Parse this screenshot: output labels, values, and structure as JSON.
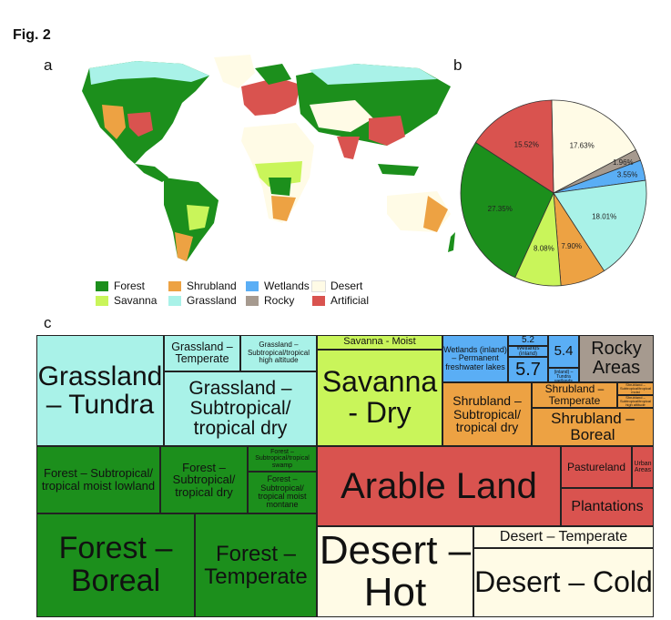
{
  "figure": {
    "label": "Fig. 2"
  },
  "panels": {
    "a": "a",
    "b": "b",
    "c": "c"
  },
  "colors": {
    "forest": "#1c8f1c",
    "savanna": "#c9f55a",
    "shrubland": "#eda243",
    "grassland": "#a9f2e8",
    "wetlands": "#5aaef5",
    "rocky": "#a69a8f",
    "desert": "#fffbe6",
    "artificial": "#d9534f"
  },
  "legend": [
    {
      "label": "Forest",
      "color": "#1c8f1c"
    },
    {
      "label": "Savanna",
      "color": "#c9f55a"
    },
    {
      "label": "Shrubland",
      "color": "#eda243"
    },
    {
      "label": "Grassland",
      "color": "#a9f2e8"
    },
    {
      "label": "Wetlands",
      "color": "#5aaef5"
    },
    {
      "label": "Rocky",
      "color": "#a69a8f"
    },
    {
      "label": "Desert",
      "color": "#fffbe6"
    },
    {
      "label": "Artificial",
      "color": "#d9534f"
    }
  ],
  "chart_data": [
    {
      "type": "pie",
      "slices": [
        {
          "category": "Desert",
          "value": 17.63,
          "label": "17.63%",
          "color": "#fffbe6"
        },
        {
          "category": "Rocky",
          "value": 1.96,
          "label": "1.96%",
          "color": "#a69a8f"
        },
        {
          "category": "Wetlands",
          "value": 3.55,
          "label": "3.55%",
          "color": "#5aaef5"
        },
        {
          "category": "Grassland",
          "value": 18.01,
          "label": "18.01%",
          "color": "#a9f2e8"
        },
        {
          "category": "Shrubland",
          "value": 7.9,
          "label": "7.90%",
          "color": "#eda243"
        },
        {
          "category": "Savanna",
          "value": 8.08,
          "label": "8.08%",
          "color": "#c9f55a"
        },
        {
          "category": "Forest",
          "value": 27.35,
          "label": "27.35%",
          "color": "#1c8f1c"
        },
        {
          "category": "Artificial",
          "value": 15.52,
          "label": "15.52%",
          "color": "#d9534f"
        }
      ]
    },
    {
      "type": "treemap",
      "tiles": [
        {
          "group": "Grassland",
          "label": "Grassland – Tundra"
        },
        {
          "group": "Grassland",
          "label": "Grassland – Temperate"
        },
        {
          "group": "Grassland",
          "label": "Grassland – Subtropical/tropical high altitude"
        },
        {
          "group": "Grassland",
          "label": "Grassland – Subtropical/ tropical dry"
        },
        {
          "group": "Savanna",
          "label": "Savanna - Moist"
        },
        {
          "group": "Savanna",
          "label": "Savanna - Dry"
        },
        {
          "group": "Wetlands",
          "label": "Wetlands (inland) – Permanent freshwater lakes"
        },
        {
          "group": "Wetlands",
          "label": "5.2"
        },
        {
          "group": "Wetlands",
          "label": "Wetlands (inland)"
        },
        {
          "group": "Wetlands",
          "label": "5.4"
        },
        {
          "group": "Wetlands",
          "label": "5.7"
        },
        {
          "group": "Wetlands",
          "label": "Wetlands (inland) – Tundra wetlands"
        },
        {
          "group": "Rocky",
          "label": "Rocky Areas"
        },
        {
          "group": "Shrubland",
          "label": "Shrubland – Subtropical/ tropical dry"
        },
        {
          "group": "Shrubland",
          "label": "Shrubland – Temperate"
        },
        {
          "group": "Shrubland",
          "label": "Shrubland – Boreal"
        },
        {
          "group": "Shrubland",
          "label": "Shrubland – Subtropical/tropical moist"
        },
        {
          "group": "Shrubland",
          "label": "Shrubland – Subtropical/tropical high altitude"
        },
        {
          "group": "Forest",
          "label": "Forest – Subtropical/ tropical moist lowland"
        },
        {
          "group": "Forest",
          "label": "Forest – Subtropical/ tropical dry"
        },
        {
          "group": "Forest",
          "label": "Forest – Subtropical/tropical swamp"
        },
        {
          "group": "Forest",
          "label": "Forest – Subtropical/ tropical moist montane"
        },
        {
          "group": "Forest",
          "label": "Forest – Boreal"
        },
        {
          "group": "Forest",
          "label": "Forest – Temperate"
        },
        {
          "group": "Artificial",
          "label": "Arable Land"
        },
        {
          "group": "Artificial",
          "label": "Pastureland"
        },
        {
          "group": "Artificial",
          "label": "Urban Areas"
        },
        {
          "group": "Artificial",
          "label": "Plantations"
        },
        {
          "group": "Desert",
          "label": "Desert – Hot"
        },
        {
          "group": "Desert",
          "label": "Desert – Temperate"
        },
        {
          "group": "Desert",
          "label": "Desert – Cold"
        }
      ]
    }
  ],
  "treemap_text": {
    "gt": "Grassland – Tundra",
    "gtemp": "Grassland – Temperate",
    "ghigh": "Grassland – Subtropical/tropical high altitude",
    "gdry": "Grassland – Subtropical/ tropical dry",
    "smoist": "Savanna - Moist",
    "sdry": "Savanna - Dry",
    "wlakes": "Wetlands (inland) – Permanent freshwater lakes",
    "w52": "5.2",
    "winland": "Wetlands (inland)",
    "w54": "5.4",
    "w57": "5.7",
    "wtundra": "Wetlands (inland) – Tundra wetlands",
    "rocky": "Rocky Areas",
    "shdry": "Shrubland – Subtropical/ tropical dry",
    "shtemp": "Shrubland – Temperate",
    "shboreal": "Shrubland – Boreal",
    "shmoist": "Shrubland – Subtropical/tropical moist",
    "shhigh": "Shrubland – Subtropical/tropical high altitude",
    "fmoist": "Forest – Subtropical/ tropical moist lowland",
    "fdry": "Forest – Subtropical/ tropical dry",
    "fswamp": "Forest – Subtropical/tropical swamp",
    "fmontane": "Forest – Subtropical/ tropical moist montane",
    "fboreal": "Forest – Boreal",
    "ftemp": "Forest – Temperate",
    "arable": "Arable Land",
    "pasture": "Pastureland",
    "urban": "Urban Areas",
    "plant": "Plantations",
    "dhot": "Desert – Hot",
    "dtemp": "Desert – Temperate",
    "dcold": "Desert – Cold"
  }
}
